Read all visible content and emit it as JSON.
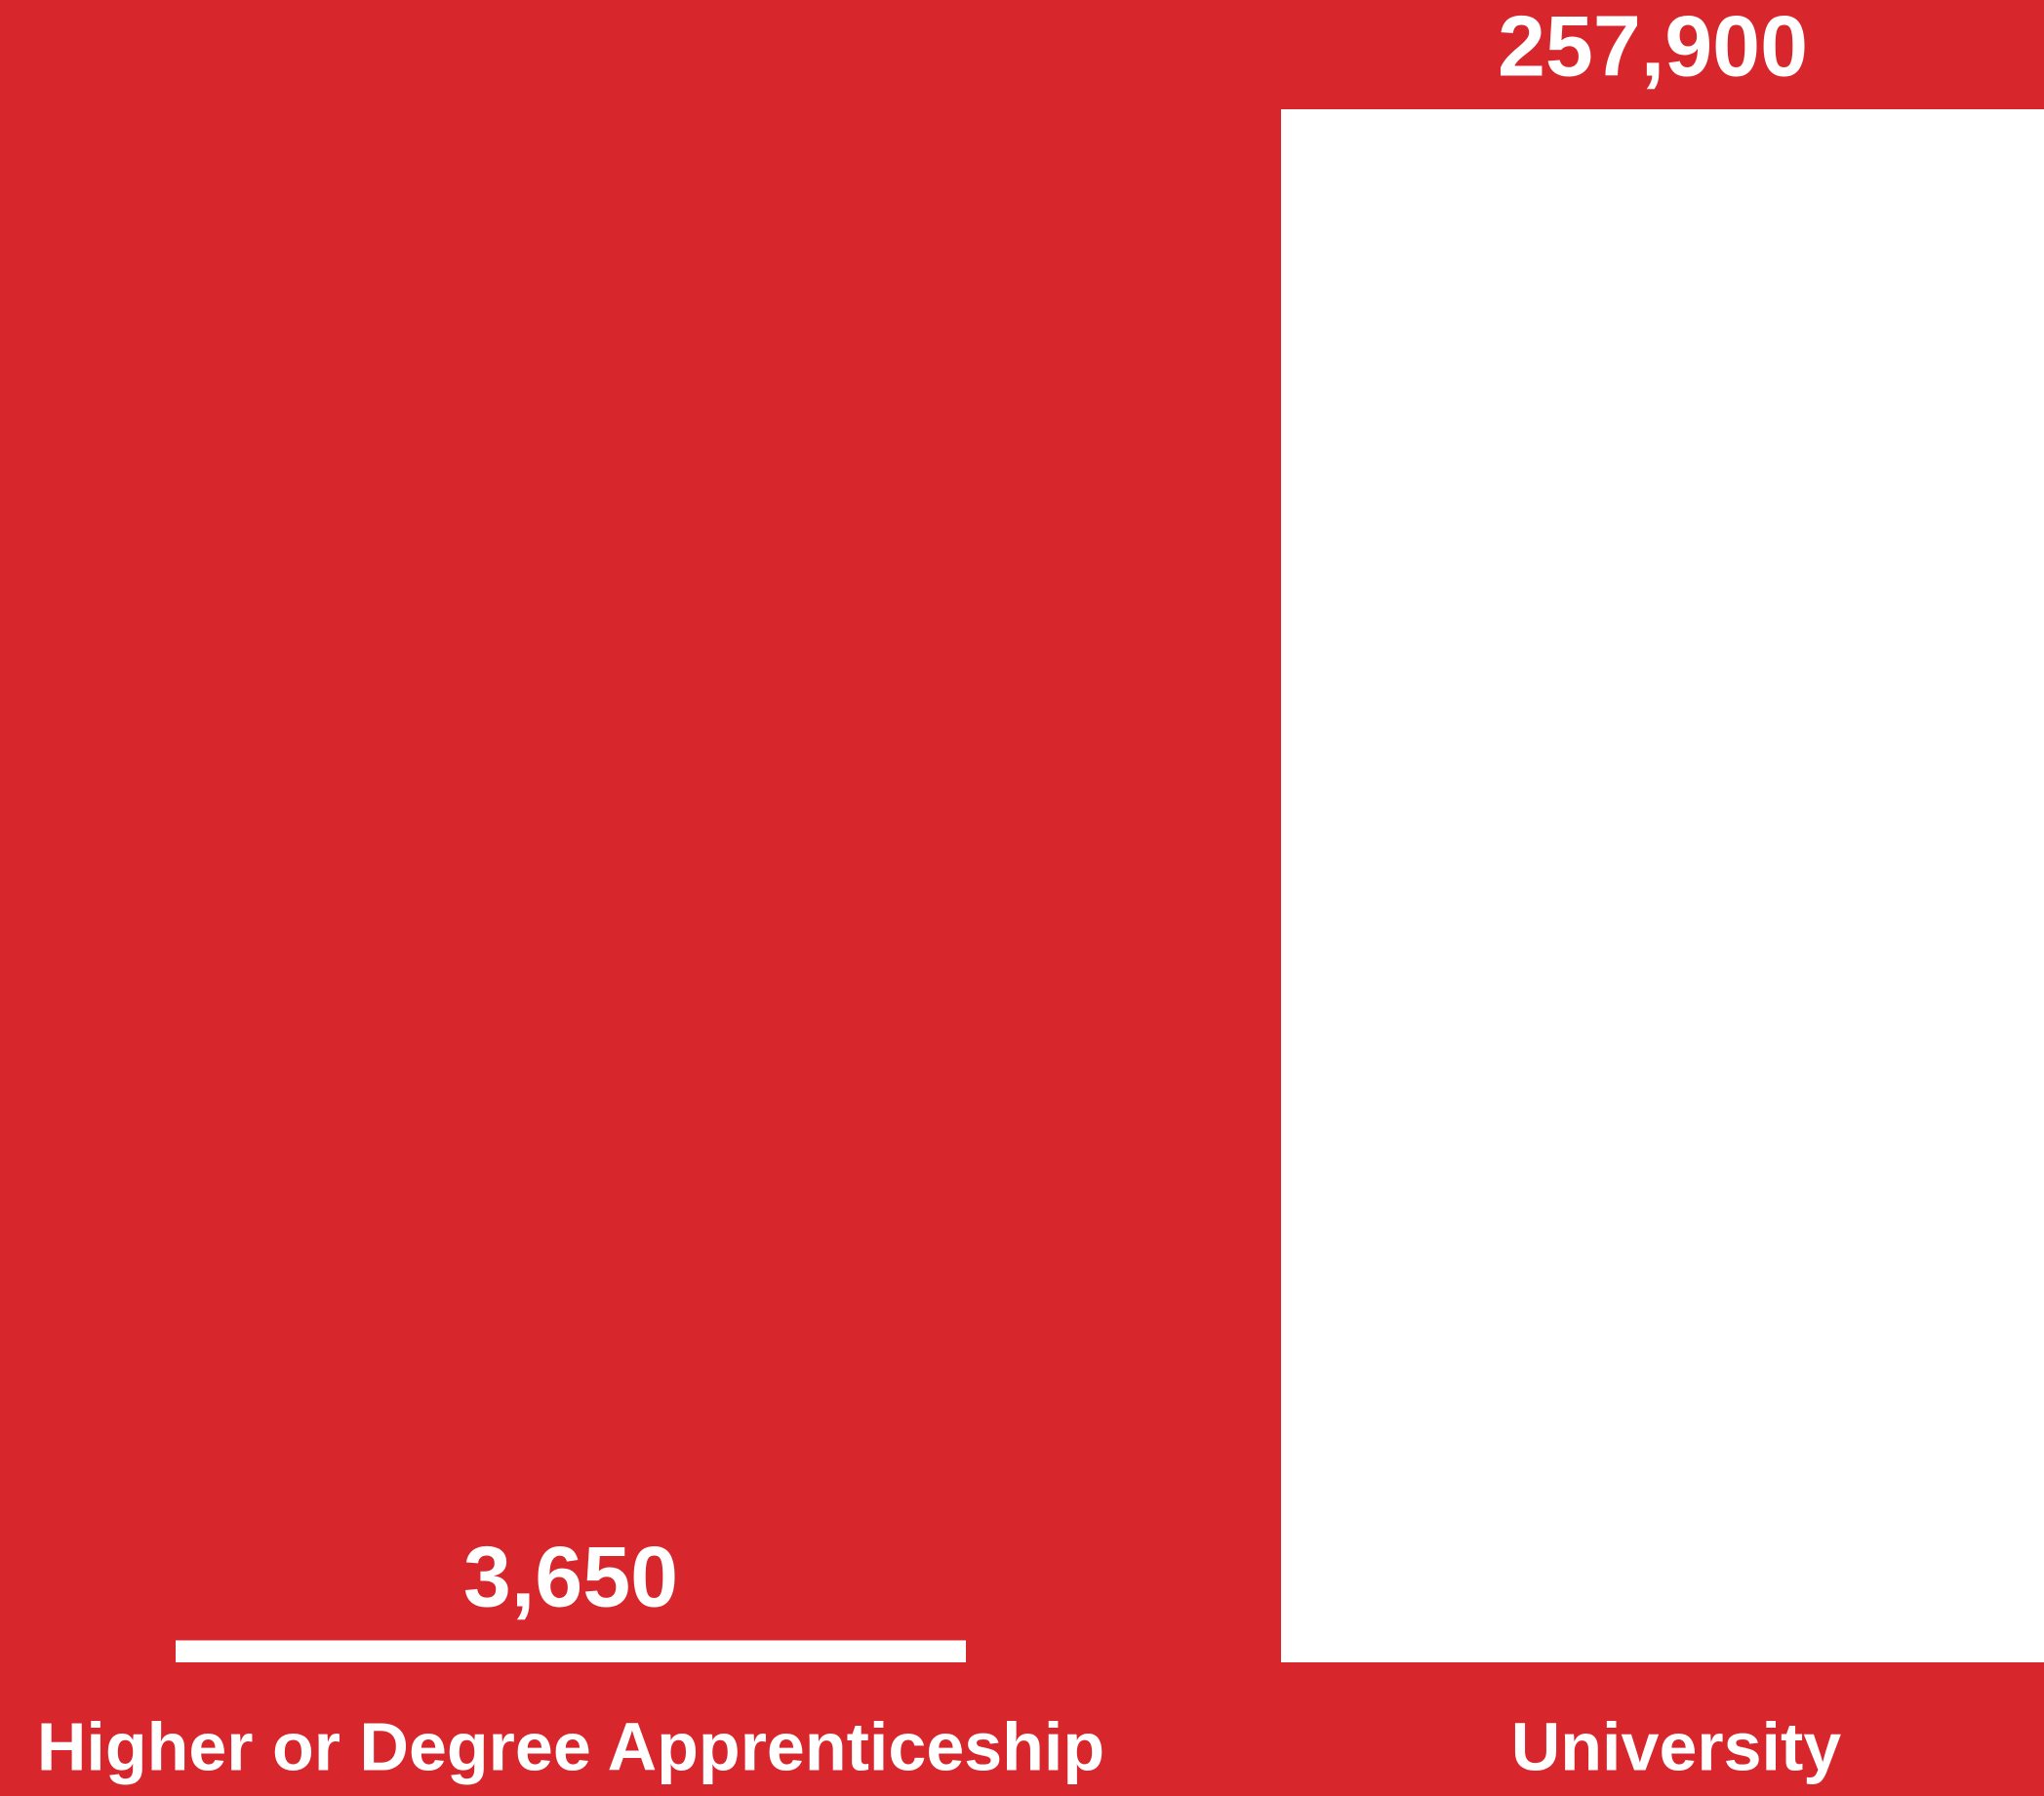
{
  "chart_data": {
    "type": "bar",
    "categories": [
      "Higher or Degree Apprenticeship",
      "University"
    ],
    "values": [
      3650,
      257900
    ],
    "value_labels": [
      "3,650",
      "257,900"
    ],
    "color": "#ffffff",
    "background": "#d8262d"
  }
}
